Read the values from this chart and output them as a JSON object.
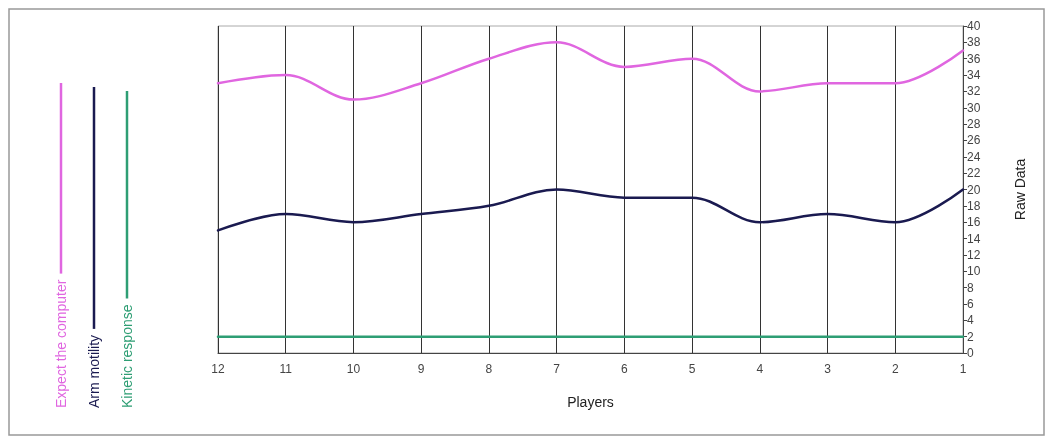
{
  "chart_data": {
    "type": "line",
    "xlabel": "Players",
    "ylabel": "Raw Data",
    "categories": [
      "12",
      "11",
      "10",
      "9",
      "8",
      "7",
      "6",
      "5",
      "4",
      "3",
      "2",
      "1"
    ],
    "series": [
      {
        "name": "Expect the computer",
        "color": "#e066e0",
        "values": [
          33,
          34,
          31,
          33,
          36,
          38,
          35,
          36,
          32,
          33,
          33,
          37
        ]
      },
      {
        "name": "Arm motility",
        "color": "#1a1a50",
        "values": [
          15,
          17,
          16,
          17,
          18,
          20,
          19,
          19,
          16,
          17,
          16,
          20
        ]
      },
      {
        "name": "Kinetic response",
        "color": "#2e9e74",
        "values": [
          2,
          2,
          2,
          2,
          2,
          2,
          2,
          2,
          2,
          2,
          2,
          2
        ]
      }
    ],
    "ylim": [
      0,
      40
    ],
    "yticks": [
      0,
      2,
      4,
      6,
      8,
      10,
      12,
      14,
      16,
      18,
      20,
      22,
      24,
      26,
      28,
      30,
      32,
      34,
      36,
      38,
      40
    ],
    "grid": "x",
    "legend": "left",
    "marker": "none",
    "line_style": "solid"
  }
}
